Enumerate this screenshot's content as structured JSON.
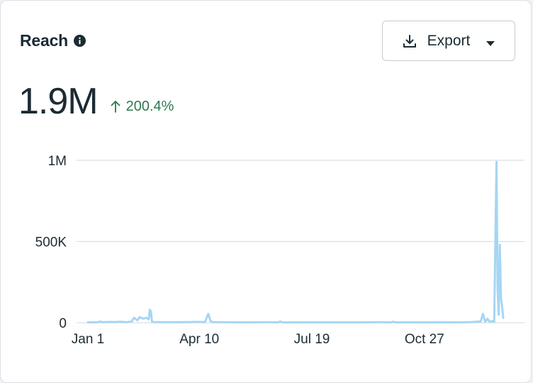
{
  "header": {
    "title": "Reach",
    "info_icon": "info-icon"
  },
  "export": {
    "label": "Export",
    "icon": "download-icon",
    "caret_icon": "caret-down-icon"
  },
  "metric": {
    "value": "1.9M",
    "change": "200.4%",
    "change_direction": "up",
    "change_color": "#2d7a4f"
  },
  "chart_data": {
    "type": "line",
    "title": "",
    "xlabel": "",
    "ylabel": "",
    "series_color": "#a6d6f3",
    "ylim": [
      0,
      1000000
    ],
    "yticks": [
      {
        "value": 0,
        "label": "0"
      },
      {
        "value": 500000,
        "label": "500K"
      },
      {
        "value": 1000000,
        "label": "1M"
      }
    ],
    "xticks": [
      {
        "day": 1,
        "label": "Jan 1"
      },
      {
        "day": 100,
        "label": "Apr 10"
      },
      {
        "day": 200,
        "label": "Jul 19"
      },
      {
        "day": 300,
        "label": "Oct 27"
      }
    ],
    "grid": true,
    "series": [
      {
        "x": [
          1,
          10,
          12,
          14,
          20,
          25,
          30,
          35,
          40,
          42,
          45,
          47,
          50,
          53,
          55,
          56,
          57,
          58,
          60,
          70,
          80,
          90,
          100,
          105,
          108,
          110,
          112,
          120,
          140,
          160,
          170,
          172,
          174,
          180,
          200,
          220,
          240,
          260,
          270,
          272,
          274,
          280,
          300,
          320,
          340,
          350,
          352,
          354,
          356,
          358,
          360,
          362,
          364,
          365,
          366,
          367,
          368,
          369,
          370
        ],
        "y": [
          2000,
          3000,
          8000,
          3000,
          5000,
          4000,
          6000,
          3000,
          8000,
          30000,
          15000,
          35000,
          25000,
          30000,
          20000,
          80000,
          70000,
          5000,
          4000,
          3000,
          3000,
          4000,
          5000,
          4000,
          55000,
          10000,
          4000,
          3000,
          2000,
          3000,
          2000,
          8000,
          2000,
          2000,
          2000,
          2000,
          2000,
          3000,
          2000,
          6000,
          2000,
          2000,
          2000,
          2000,
          3000,
          8000,
          55000,
          5000,
          25000,
          5000,
          10000,
          5000,
          990000,
          200000,
          50000,
          480000,
          150000,
          100000,
          30000
        ]
      }
    ]
  }
}
